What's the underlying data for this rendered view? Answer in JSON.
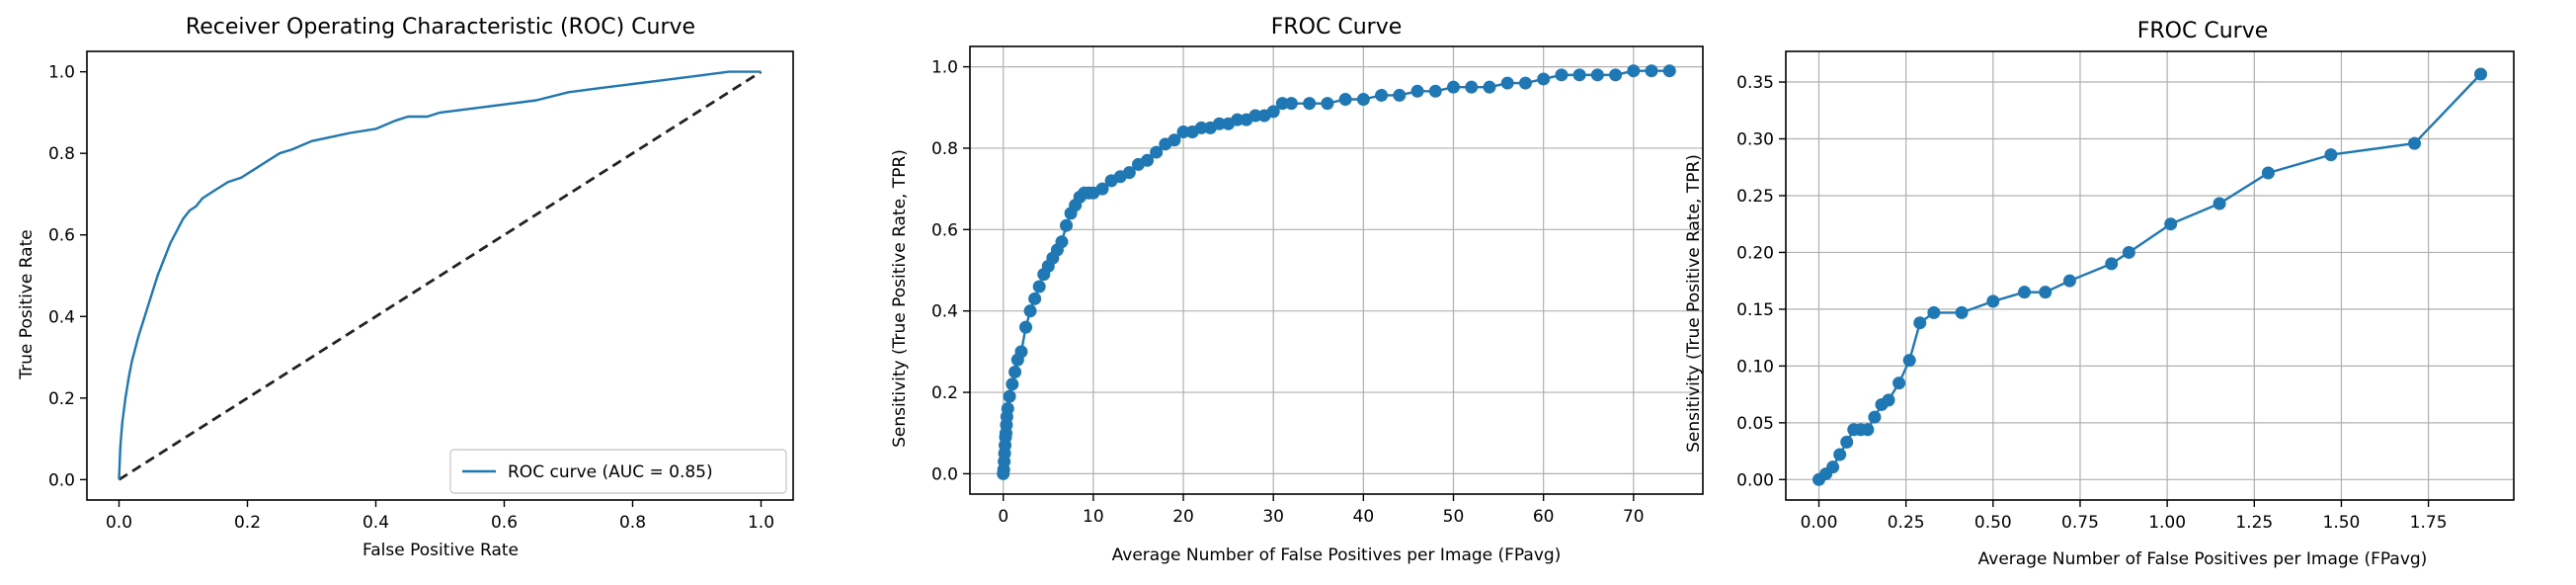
{
  "colors": {
    "series": "#1f77b4",
    "diagonal": "#222222"
  },
  "chart_data": [
    {
      "type": "line",
      "title": "Receiver Operating Characteristic (ROC) Curve",
      "xlabel": "False Positive Rate",
      "ylabel": "True Positive Rate",
      "xlim": [
        -0.05,
        1.05
      ],
      "ylim": [
        -0.05,
        1.05
      ],
      "grid": false,
      "xticks": [
        0.0,
        0.2,
        0.4,
        0.6,
        0.8,
        1.0
      ],
      "xtick_labels": [
        "0.0",
        "0.2",
        "0.4",
        "0.6",
        "0.8",
        "1.0"
      ],
      "yticks": [
        0.0,
        0.2,
        0.4,
        0.6,
        0.8,
        1.0
      ],
      "ytick_labels": [
        "0.0",
        "0.2",
        "0.4",
        "0.6",
        "0.8",
        "1.0"
      ],
      "legend_position": "lower-right",
      "series": [
        {
          "name": "ROC curve (AUC = 0.85)",
          "markers": false,
          "x": [
            0.0,
            0.002,
            0.005,
            0.01,
            0.015,
            0.02,
            0.03,
            0.04,
            0.05,
            0.06,
            0.07,
            0.08,
            0.09,
            0.1,
            0.11,
            0.12,
            0.13,
            0.15,
            0.17,
            0.19,
            0.21,
            0.23,
            0.25,
            0.27,
            0.3,
            0.33,
            0.36,
            0.4,
            0.43,
            0.45,
            0.48,
            0.5,
            0.55,
            0.6,
            0.65,
            0.7,
            0.75,
            0.8,
            0.85,
            0.9,
            0.95,
            1.0
          ],
          "y": [
            0.0,
            0.08,
            0.14,
            0.2,
            0.25,
            0.29,
            0.35,
            0.4,
            0.45,
            0.5,
            0.54,
            0.58,
            0.61,
            0.64,
            0.66,
            0.67,
            0.69,
            0.71,
            0.73,
            0.74,
            0.76,
            0.78,
            0.8,
            0.81,
            0.83,
            0.84,
            0.85,
            0.86,
            0.88,
            0.89,
            0.89,
            0.9,
            0.91,
            0.92,
            0.93,
            0.95,
            0.96,
            0.97,
            0.98,
            0.99,
            1.0,
            1.0
          ]
        }
      ],
      "reference_line": {
        "x": [
          0.0,
          1.0
        ],
        "y": [
          0.0,
          1.0
        ],
        "style": "dashed"
      }
    },
    {
      "type": "line",
      "title": "FROC Curve",
      "xlabel": "Average Number of False Positives per Image (FPavg)",
      "ylabel": "Sensitivity (True Positive Rate, TPR)",
      "xlim": [
        -3.7,
        77.7
      ],
      "ylim": [
        -0.05,
        1.05
      ],
      "grid": true,
      "xticks": [
        0,
        10,
        20,
        30,
        40,
        50,
        60,
        70
      ],
      "xtick_labels": [
        "0",
        "10",
        "20",
        "30",
        "40",
        "50",
        "60",
        "70"
      ],
      "yticks": [
        0.0,
        0.2,
        0.4,
        0.6,
        0.8,
        1.0
      ],
      "ytick_labels": [
        "0.0",
        "0.2",
        "0.4",
        "0.6",
        "0.8",
        "1.0"
      ],
      "series": [
        {
          "markers": true,
          "x": [
            0,
            0.05,
            0.1,
            0.15,
            0.2,
            0.25,
            0.3,
            0.35,
            0.4,
            0.5,
            0.7,
            1.0,
            1.3,
            1.6,
            2.0,
            2.5,
            3.0,
            3.5,
            4.0,
            4.5,
            5.0,
            5.5,
            6.0,
            6.5,
            7.0,
            7.5,
            8.0,
            8.5,
            9.0,
            9.5,
            10.0,
            11.0,
            12.0,
            13.0,
            14.0,
            15.0,
            16.0,
            17.0,
            18.0,
            19.0,
            20.0,
            21.0,
            22.0,
            23.0,
            24.0,
            25.0,
            26.0,
            27.0,
            28.0,
            29.0,
            30.0,
            31.0,
            32.0,
            34.0,
            36.0,
            38.0,
            40.0,
            42.0,
            44.0,
            46.0,
            48.0,
            50.0,
            52.0,
            54.0,
            56.0,
            58.0,
            60.0,
            62.0,
            64.0,
            66.0,
            68.0,
            70.0,
            72.0,
            74.0
          ],
          "y": [
            0.0,
            0.01,
            0.03,
            0.05,
            0.07,
            0.09,
            0.1,
            0.12,
            0.14,
            0.16,
            0.19,
            0.22,
            0.25,
            0.28,
            0.3,
            0.36,
            0.4,
            0.43,
            0.46,
            0.49,
            0.51,
            0.53,
            0.55,
            0.57,
            0.61,
            0.64,
            0.66,
            0.68,
            0.69,
            0.69,
            0.69,
            0.7,
            0.72,
            0.73,
            0.74,
            0.76,
            0.77,
            0.79,
            0.81,
            0.82,
            0.84,
            0.84,
            0.85,
            0.85,
            0.86,
            0.86,
            0.87,
            0.87,
            0.88,
            0.88,
            0.89,
            0.91,
            0.91,
            0.91,
            0.91,
            0.92,
            0.92,
            0.93,
            0.93,
            0.94,
            0.94,
            0.95,
            0.95,
            0.95,
            0.96,
            0.96,
            0.97,
            0.98,
            0.98,
            0.98,
            0.98,
            0.99,
            0.99,
            0.99
          ]
        }
      ]
    },
    {
      "type": "line",
      "title": "FROC Curve",
      "xlabel": "Average Number of False Positives per Image (FPavg)",
      "ylabel": "Sensitivity (True Positive Rate, TPR)",
      "xlim": [
        -0.095,
        1.995
      ],
      "ylim": [
        -0.018,
        0.377
      ],
      "grid": true,
      "xticks": [
        0.0,
        0.25,
        0.5,
        0.75,
        1.0,
        1.25,
        1.5,
        1.75
      ],
      "xtick_labels": [
        "0.00",
        "0.25",
        "0.50",
        "0.75",
        "1.00",
        "1.25",
        "1.50",
        "1.75"
      ],
      "yticks": [
        0.0,
        0.05,
        0.1,
        0.15,
        0.2,
        0.25,
        0.3,
        0.35
      ],
      "ytick_labels": [
        "0.00",
        "0.05",
        "0.10",
        "0.15",
        "0.20",
        "0.25",
        "0.30",
        "0.35"
      ],
      "series": [
        {
          "markers": true,
          "x": [
            0.0,
            0.02,
            0.04,
            0.06,
            0.08,
            0.1,
            0.12,
            0.14,
            0.16,
            0.18,
            0.2,
            0.23,
            0.26,
            0.29,
            0.33,
            0.41,
            0.5,
            0.59,
            0.65,
            0.72,
            0.84,
            0.89,
            1.01,
            1.15,
            1.29,
            1.47,
            1.71,
            1.9
          ],
          "y": [
            0.0,
            0.005,
            0.011,
            0.022,
            0.033,
            0.044,
            0.044,
            0.044,
            0.055,
            0.066,
            0.07,
            0.085,
            0.105,
            0.138,
            0.147,
            0.147,
            0.157,
            0.165,
            0.165,
            0.175,
            0.19,
            0.2,
            0.225,
            0.243,
            0.27,
            0.286,
            0.296,
            0.357
          ]
        }
      ]
    }
  ]
}
